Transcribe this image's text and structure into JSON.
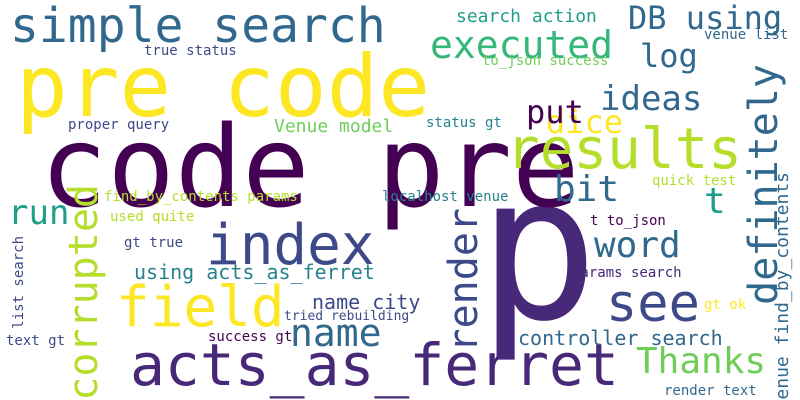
{
  "colors": {
    "background": "#ffffff",
    "palette": {
      "dark_purple": "#440154",
      "purple": "#482878",
      "indigo": "#3e4989",
      "blue": "#31688e",
      "teal_blue": "#26828e",
      "teal": "#1f9e89",
      "green": "#35b779",
      "light_green": "#6ece58",
      "lime": "#b5de2b",
      "yellow": "#fde725"
    }
  },
  "words": {
    "p": "p",
    "code_pre": "code pre",
    "pre_code": "pre code",
    "acts_as_ferret": "acts_as_ferret",
    "index": "index",
    "field": "field",
    "see": "see",
    "results": "results",
    "simple_search": "simple search",
    "name": "name",
    "executed": "executed",
    "definitely": "definitely",
    "corrupted": "corrupted",
    "render": "render",
    "thanks": "Thanks",
    "word": "word",
    "db_using": "DB using",
    "bit": "bit",
    "ideas": "ideas",
    "dice": "dice",
    "run": "run",
    "put": "put",
    "log": "log",
    "t": "t",
    "name_city": "name city",
    "controller_search": "controller search",
    "using_acts_as_ferret": "using acts_as_ferret",
    "venue_find_by_contents": "Venue find_by_contents",
    "search_action": "search action",
    "venue_model": "Venue model",
    "status_gt": "status gt",
    "true_status": "true status",
    "venue_list": "venue list",
    "to_json_success": "to_json success",
    "proper_query": "proper query",
    "find_by_contents_params": "find_by_contents params",
    "localhost_venue": "localhost venue",
    "quick_test": "quick test",
    "used_quite": "used quite",
    "t_to_json": "t to_json",
    "gt_true": "gt true",
    "params_search": "params search",
    "list_search": "list search",
    "tried_rebuilding": "tried rebuilding",
    "gt_ok": "gt ok",
    "text_gt": "text gt",
    "success_gt": "success gt",
    "render_text": "render text"
  }
}
